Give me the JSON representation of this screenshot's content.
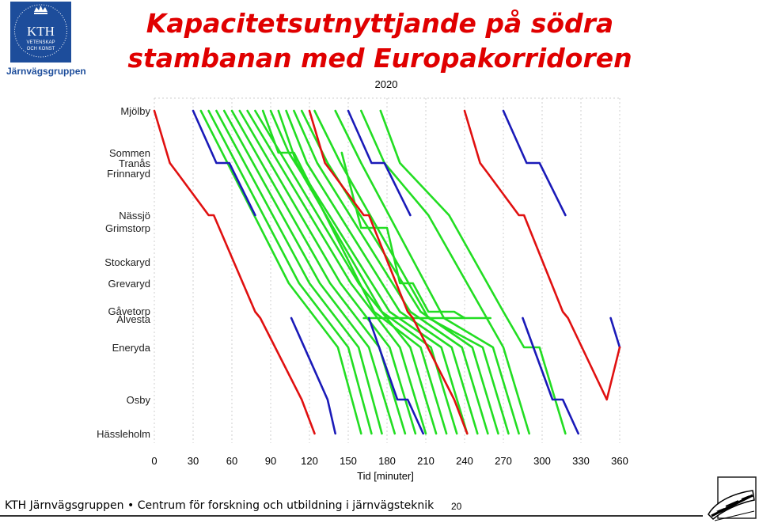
{
  "header": {
    "logo_text": "KTH",
    "logo_subtext_1": "VETENSKAP",
    "logo_subtext_2": "OCH KONST",
    "logo_caption": "Järnvägsgruppen",
    "title_line_1": "Kapacitetsutnyttjande på södra",
    "title_line_2": "stambanan med Europakorridoren"
  },
  "footer": {
    "text": "KTH Järnvägsgruppen • Centrum för forskning och utbildning i järnvägsteknik",
    "page_number": "20"
  },
  "chart_data": {
    "type": "line",
    "title": "2020",
    "xlabel": "Tid [minuter]",
    "x_ticks": [
      0,
      30,
      60,
      90,
      120,
      150,
      180,
      210,
      240,
      270,
      300,
      330,
      360
    ],
    "xlim": [
      0,
      360
    ],
    "grid": true,
    "stations": [
      "Mjölby",
      "Sommen",
      "Tranås",
      "Frinnaryd",
      "Nässjö",
      "Grimstorp",
      "Stockaryd",
      "Grevaryd",
      "Gåvetorp",
      "Alvesta",
      "Eneryda",
      "Osby",
      "Hässleholm"
    ],
    "colors": {
      "red": "#e01010",
      "blue": "#1a1ab8",
      "green": "#22dd22"
    },
    "trains": [
      {
        "color": "red",
        "points": [
          [
            0,
            "Mjölby"
          ],
          [
            12,
            "Tranås"
          ],
          [
            18,
            "Frinnaryd"
          ],
          [
            42,
            "Nässjö"
          ],
          [
            46,
            "Nässjö"
          ],
          [
            78,
            "Gåvetorp"
          ],
          [
            82,
            "Alvesta"
          ],
          [
            114,
            "Osby"
          ],
          [
            124,
            "Hässleholm"
          ]
        ]
      },
      {
        "color": "red",
        "points": [
          [
            120,
            "Mjölby"
          ],
          [
            132,
            "Tranås"
          ],
          [
            138,
            "Frinnaryd"
          ],
          [
            162,
            "Nässjö"
          ],
          [
            166,
            "Nässjö"
          ],
          [
            196,
            "Gåvetorp"
          ],
          [
            200,
            "Alvesta"
          ],
          [
            232,
            "Osby"
          ],
          [
            242,
            "Hässleholm"
          ]
        ]
      },
      {
        "color": "red",
        "points": [
          [
            240,
            "Mjölby"
          ],
          [
            252,
            "Tranås"
          ],
          [
            258,
            "Frinnaryd"
          ],
          [
            282,
            "Nässjö"
          ],
          [
            286,
            "Nässjö"
          ],
          [
            316,
            "Gåvetorp"
          ],
          [
            320,
            "Alvesta"
          ],
          [
            350,
            "Osby"
          ],
          [
            360,
            "Eneryda"
          ]
        ]
      },
      {
        "color": "blue",
        "points": [
          [
            30,
            "Mjölby"
          ],
          [
            48,
            "Tranås"
          ],
          [
            58,
            "Tranås"
          ],
          [
            78,
            "Nässjö"
          ]
        ]
      },
      {
        "color": "blue",
        "points": [
          [
            150,
            "Mjölby"
          ],
          [
            168,
            "Tranås"
          ],
          [
            178,
            "Tranås"
          ],
          [
            198,
            "Nässjö"
          ]
        ]
      },
      {
        "color": "blue",
        "points": [
          [
            270,
            "Mjölby"
          ],
          [
            288,
            "Tranås"
          ],
          [
            298,
            "Tranås"
          ],
          [
            318,
            "Nässjö"
          ]
        ]
      },
      {
        "color": "blue",
        "points": [
          [
            106,
            "Alvesta"
          ],
          [
            134,
            "Osby"
          ],
          [
            140,
            "Hässleholm"
          ]
        ]
      },
      {
        "color": "blue",
        "points": [
          [
            166,
            "Alvesta"
          ],
          [
            188,
            "Osby"
          ],
          [
            196,
            "Osby"
          ],
          [
            208,
            "Hässleholm"
          ]
        ]
      },
      {
        "color": "blue",
        "points": [
          [
            285,
            "Alvesta"
          ],
          [
            308,
            "Osby"
          ],
          [
            316,
            "Osby"
          ],
          [
            328,
            "Hässleholm"
          ]
        ]
      },
      {
        "color": "blue",
        "points": [
          [
            353,
            "Alvesta"
          ],
          [
            360,
            "Eneryda"
          ]
        ]
      },
      {
        "color": "green",
        "points": [
          [
            36,
            "Mjölby"
          ],
          [
            104,
            "Grevaryd"
          ],
          [
            142,
            "Eneryda"
          ],
          [
            160,
            "Hässleholm"
          ]
        ]
      },
      {
        "color": "green",
        "points": [
          [
            42,
            "Mjölby"
          ],
          [
            112,
            "Grevaryd"
          ],
          [
            150,
            "Eneryda"
          ],
          [
            168,
            "Hässleholm"
          ]
        ]
      },
      {
        "color": "green",
        "points": [
          [
            48,
            "Mjölby"
          ],
          [
            120,
            "Grevaryd"
          ],
          [
            158,
            "Eneryda"
          ],
          [
            176,
            "Hässleholm"
          ]
        ]
      },
      {
        "color": "green",
        "points": [
          [
            54,
            "Mjölby"
          ],
          [
            128,
            "Grevaryd"
          ],
          [
            166,
            "Eneryda"
          ],
          [
            186,
            "Hässleholm"
          ]
        ]
      },
      {
        "color": "green",
        "points": [
          [
            60,
            "Mjölby"
          ],
          [
            136,
            "Grevaryd"
          ],
          [
            174,
            "Eneryda"
          ],
          [
            194,
            "Hässleholm"
          ]
        ]
      },
      {
        "color": "green",
        "points": [
          [
            66,
            "Mjölby"
          ],
          [
            144,
            "Grevaryd"
          ],
          [
            182,
            "Eneryda"
          ],
          [
            202,
            "Hässleholm"
          ]
        ]
      },
      {
        "color": "green",
        "points": [
          [
            72,
            "Mjölby"
          ],
          [
            152,
            "Grevaryd"
          ],
          [
            190,
            "Eneryda"
          ],
          [
            210,
            "Hässleholm"
          ]
        ]
      },
      {
        "color": "green",
        "points": [
          [
            78,
            "Mjölby"
          ],
          [
            158,
            "Grevaryd"
          ],
          [
            198,
            "Eneryda"
          ],
          [
            218,
            "Hässleholm"
          ]
        ]
      },
      {
        "color": "green",
        "points": [
          [
            84,
            "Mjölby"
          ],
          [
            96,
            "Sommen"
          ],
          [
            108,
            "Sommen"
          ],
          [
            170,
            "Gåvetorp"
          ],
          [
            206,
            "Eneryda"
          ],
          [
            226,
            "Hässleholm"
          ]
        ]
      },
      {
        "color": "green",
        "points": [
          [
            90,
            "Mjölby"
          ],
          [
            104,
            "Sommen"
          ],
          [
            114,
            "Frinnaryd"
          ],
          [
            176,
            "Gåvetorp"
          ],
          [
            214,
            "Eneryda"
          ],
          [
            234,
            "Hässleholm"
          ]
        ]
      },
      {
        "color": "green",
        "points": [
          [
            96,
            "Mjölby"
          ],
          [
            110,
            "Tranås"
          ],
          [
            182,
            "Gåvetorp"
          ],
          [
            222,
            "Eneryda"
          ],
          [
            242,
            "Hässleholm"
          ]
        ]
      },
      {
        "color": "green",
        "points": [
          [
            102,
            "Mjölby"
          ],
          [
            118,
            "Tranås"
          ],
          [
            190,
            "Gåvetorp"
          ],
          [
            230,
            "Eneryda"
          ],
          [
            250,
            "Hässleholm"
          ]
        ]
      },
      {
        "color": "green",
        "points": [
          [
            108,
            "Mjölby"
          ],
          [
            126,
            "Tranås"
          ],
          [
            198,
            "Gåvetorp"
          ],
          [
            238,
            "Eneryda"
          ],
          [
            258,
            "Hässleholm"
          ]
        ]
      },
      {
        "color": "green",
        "points": [
          [
            114,
            "Mjölby"
          ],
          [
            134,
            "Tranås"
          ],
          [
            206,
            "Gåvetorp"
          ],
          [
            246,
            "Eneryda"
          ],
          [
            266,
            "Hässleholm"
          ]
        ]
      },
      {
        "color": "green",
        "points": [
          [
            124,
            "Mjölby"
          ],
          [
            144,
            "Tranås"
          ],
          [
            212,
            "Alvesta"
          ],
          [
            254,
            "Eneryda"
          ],
          [
            274,
            "Hässleholm"
          ]
        ]
      },
      {
        "color": "green",
        "points": [
          [
            140,
            "Mjölby"
          ],
          [
            160,
            "Tranås"
          ],
          [
            224,
            "Alvesta"
          ],
          [
            262,
            "Eneryda"
          ],
          [
            282,
            "Hässleholm"
          ]
        ]
      },
      {
        "color": "green",
        "points": [
          [
            160,
            "Mjölby"
          ],
          [
            178,
            "Tranås"
          ],
          [
            212,
            "Nässjö"
          ],
          [
            270,
            "Eneryda"
          ],
          [
            290,
            "Hässleholm"
          ]
        ]
      },
      {
        "color": "green",
        "points": [
          [
            175,
            "Mjölby"
          ],
          [
            190,
            "Tranås"
          ],
          [
            228,
            "Nässjö"
          ],
          [
            270,
            "Gåvetorp"
          ],
          [
            286,
            "Eneryda"
          ],
          [
            298,
            "Eneryda"
          ],
          [
            318,
            "Hässleholm"
          ]
        ]
      },
      {
        "color": "green",
        "points": [
          [
            145,
            "Sommen"
          ],
          [
            160,
            "Grimstorp"
          ],
          [
            180,
            "Grimstorp"
          ],
          [
            190,
            "Grevaryd"
          ],
          [
            200,
            "Grevaryd"
          ],
          [
            212,
            "Gåvetorp"
          ],
          [
            232,
            "Gåvetorp"
          ],
          [
            240,
            "Alvesta"
          ]
        ]
      },
      {
        "color": "green",
        "points": [
          [
            162,
            "Alvesta"
          ],
          [
            240,
            "Alvesta"
          ],
          [
            260,
            "Alvesta"
          ]
        ]
      }
    ]
  }
}
